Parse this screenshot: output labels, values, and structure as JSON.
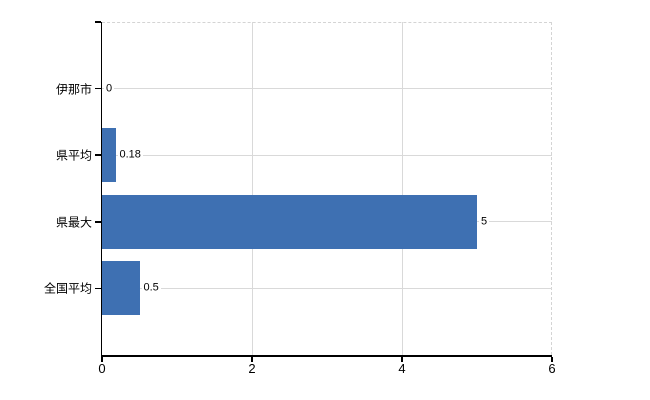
{
  "chart_data": {
    "type": "bar",
    "orientation": "horizontal",
    "title": "",
    "categories": [
      "伊那市",
      "県平均",
      "県最大",
      "全国平均"
    ],
    "values": [
      0,
      0.18,
      5,
      0.5
    ],
    "value_labels": [
      "0",
      "0.18",
      "5",
      "0.5"
    ],
    "x_ticks": [
      0,
      2,
      4,
      6
    ],
    "x_tick_labels": [
      "0",
      "2",
      "4",
      "6"
    ],
    "xlim": [
      0,
      6
    ],
    "xlabel": "",
    "ylabel": "",
    "grid": true,
    "legend": false,
    "colors": {
      "bar": "#3e70b2",
      "grid": "#d9d9d9",
      "dashed_border": "#d4d4d4",
      "axis": "#000000",
      "text": "#000000",
      "background": "#ffffff"
    }
  }
}
